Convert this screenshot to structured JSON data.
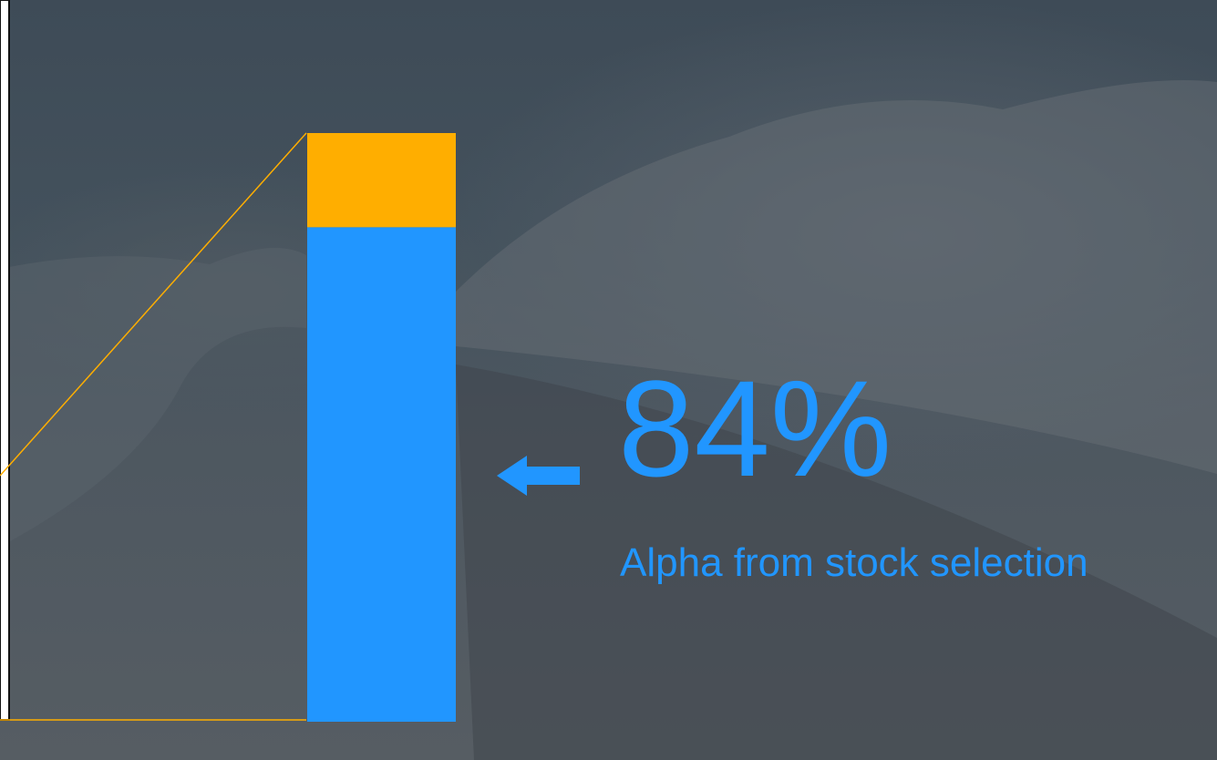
{
  "chart_data": {
    "type": "bar",
    "categories": [
      null
    ],
    "series": [
      {
        "color": "#2196ff",
        "values": [
          84
        ],
        "value_labels": [
          "84%"
        ]
      },
      {
        "color": "#ffae00",
        "values": [
          16
        ]
      }
    ],
    "annotation": "Alpha from stock selection",
    "ylim": [
      0,
      100
    ]
  }
}
